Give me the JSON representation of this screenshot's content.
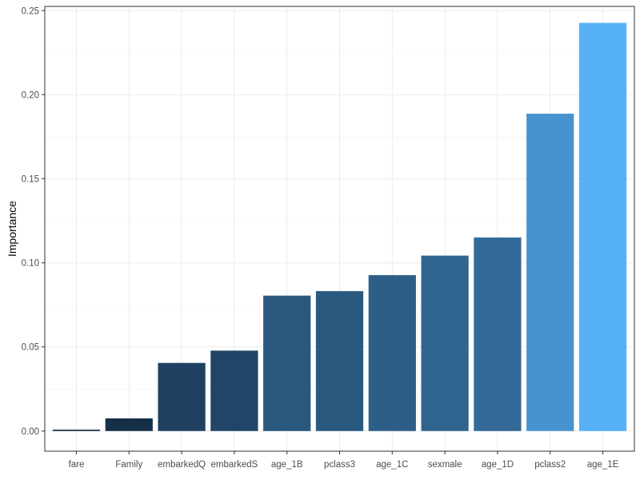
{
  "chart_data": {
    "type": "bar",
    "title": "",
    "xlabel": "",
    "ylabel": "Importance",
    "ylim": [
      -0.012,
      0.2525
    ],
    "yticks": [
      0.0,
      0.05,
      0.1,
      0.15,
      0.2,
      0.25
    ],
    "ytick_labels": [
      "0.00",
      "0.05",
      "0.10",
      "0.15",
      "0.20",
      "0.25"
    ],
    "categories": [
      "fare",
      "Family",
      "embarkedQ",
      "embarkedS",
      "age_1B",
      "pclass3",
      "age_1C",
      "sexmale",
      "age_1D",
      "pclass2",
      "age_1E"
    ],
    "values": [
      0.0008,
      0.0075,
      0.0405,
      0.0478,
      0.0805,
      0.0832,
      0.0927,
      0.1043,
      0.1151,
      0.1887,
      0.2427
    ],
    "fill_low": "#132B43",
    "fill_high": "#56B1F7",
    "grid": true,
    "legend": "none"
  }
}
